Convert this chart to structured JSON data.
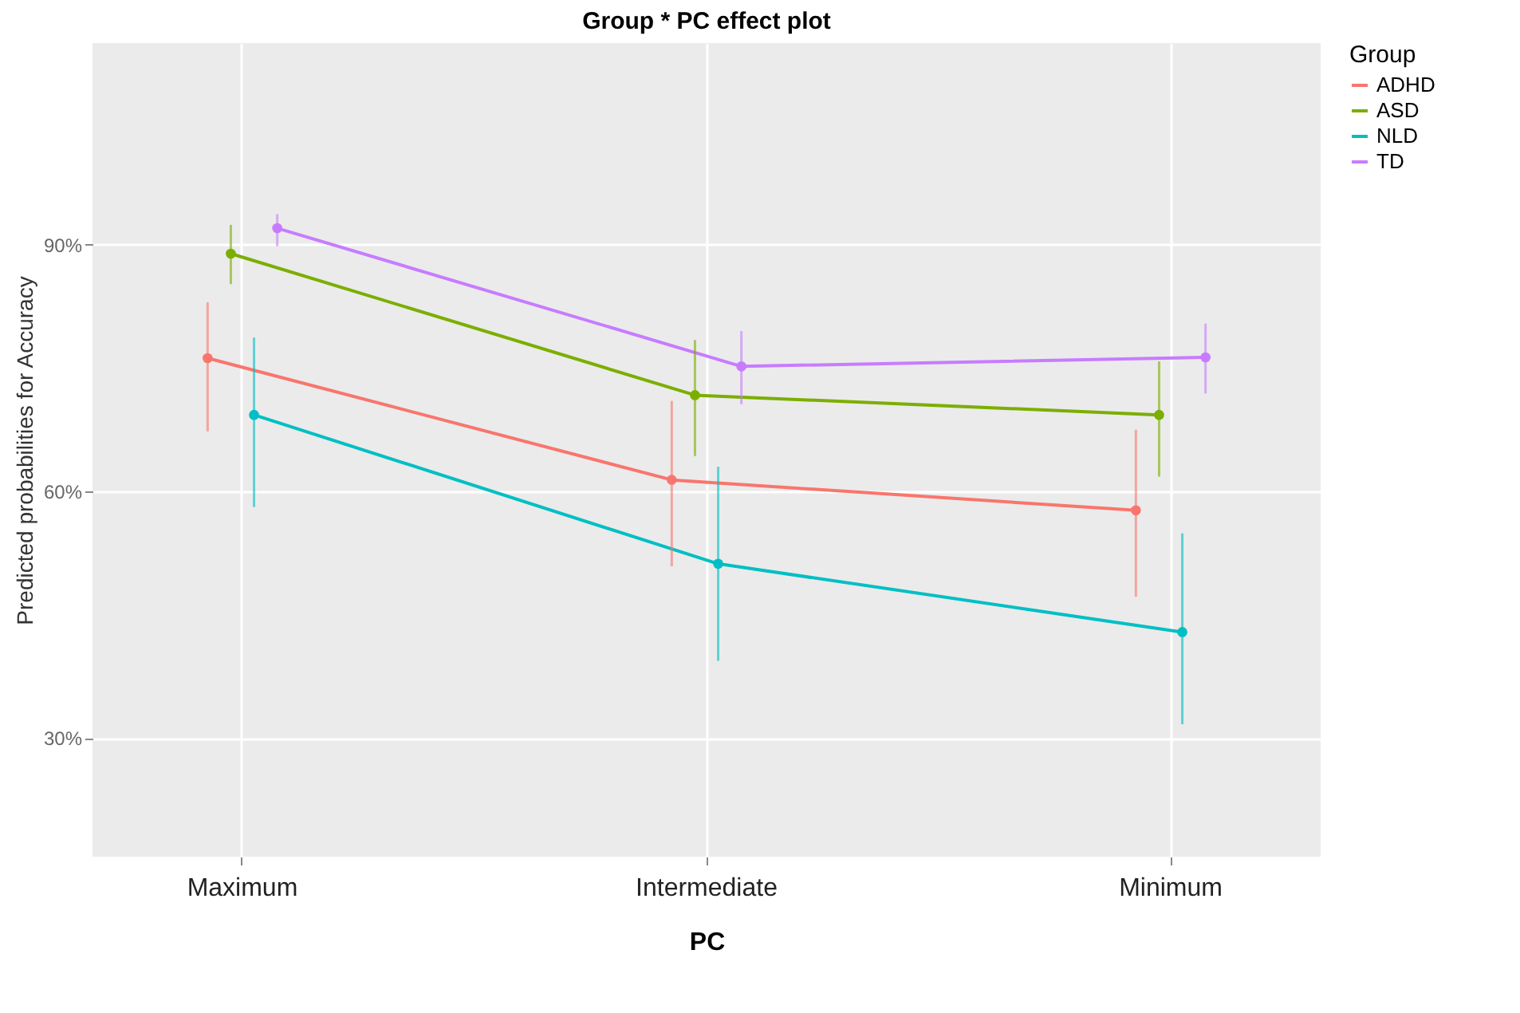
{
  "chart_data": {
    "type": "line",
    "title": "Group * PC effect plot",
    "xlabel": "PC",
    "ylabel": "Predicted probabilities for Accuracy",
    "legend_title": "Group",
    "categories": [
      "Maximum",
      "Intermediate",
      "Minimum"
    ],
    "series": [
      {
        "name": "ADHD",
        "color": "#f8766d",
        "values": [
          76.2,
          61.4,
          57.7
        ],
        "errors": [
          [
            67.3,
            83.0
          ],
          [
            50.9,
            71.0
          ],
          [
            47.2,
            67.5
          ]
        ]
      },
      {
        "name": "ASD",
        "color": "#7cae00",
        "values": [
          88.9,
          71.7,
          69.3
        ],
        "errors": [
          [
            85.2,
            92.4
          ],
          [
            64.3,
            78.4
          ],
          [
            61.8,
            75.8
          ]
        ]
      },
      {
        "name": "NLD",
        "color": "#00bfc4",
        "values": [
          69.3,
          51.2,
          42.9
        ],
        "errors": [
          [
            58.1,
            78.7
          ],
          [
            39.4,
            63.0
          ],
          [
            31.7,
            54.9
          ]
        ]
      },
      {
        "name": "TD",
        "color": "#c77cff",
        "values": [
          92.0,
          75.2,
          76.3
        ],
        "errors": [
          [
            89.8,
            93.7
          ],
          [
            70.6,
            79.5
          ],
          [
            71.9,
            80.4
          ]
        ]
      }
    ],
    "ylim": [
      15.6,
      114.5
    ],
    "yticks": [
      {
        "value": 30,
        "label": "30%"
      },
      {
        "value": 60,
        "label": "60%"
      },
      {
        "value": 90,
        "label": "90%"
      }
    ],
    "grid": true,
    "legend": "right",
    "marker": "circle",
    "line_style": "solid"
  }
}
